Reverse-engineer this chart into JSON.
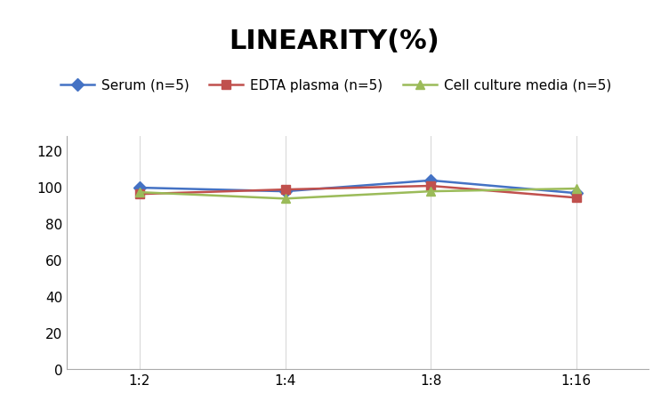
{
  "title": "LINEARITY(%)",
  "x_labels": [
    "1:2",
    "1:4",
    "1:8",
    "1:16"
  ],
  "x_positions": [
    0,
    1,
    2,
    3
  ],
  "series": [
    {
      "label": "Serum (n=5)",
      "color": "#4472C4",
      "marker": "D",
      "marker_color": "#4472C4",
      "values": [
        99.5,
        97.5,
        103.5,
        96.5
      ]
    },
    {
      "label": "EDTA plasma (n=5)",
      "color": "#C0504D",
      "marker": "s",
      "marker_color": "#C0504D",
      "values": [
        96.0,
        98.5,
        100.5,
        94.0
      ]
    },
    {
      "label": "Cell culture media (n=5)",
      "color": "#9BBB59",
      "marker": "^",
      "marker_color": "#9BBB59",
      "values": [
        97.0,
        93.5,
        97.5,
        99.0
      ]
    }
  ],
  "ylim": [
    0,
    128
  ],
  "yticks": [
    0,
    20,
    40,
    60,
    80,
    100,
    120
  ],
  "grid_color": "#D9D9D9",
  "background_color": "#FFFFFF",
  "title_fontsize": 22,
  "title_fontweight": "bold",
  "legend_fontsize": 11,
  "tick_fontsize": 11
}
